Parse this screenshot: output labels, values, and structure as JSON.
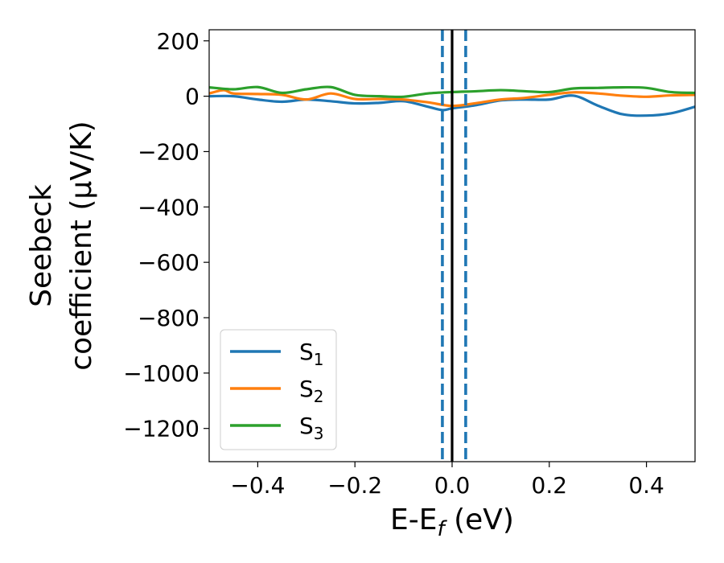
{
  "chart_data": {
    "type": "line",
    "xlabel": "E-E",
    "xlabel_sub": "f",
    "xlabel_unit": " (eV)",
    "ylabel_line1": "Seebeck",
    "ylabel_line2": "coefficient  (μV/K)",
    "xlim": [
      -0.5,
      0.5
    ],
    "ylim": [
      -1320,
      240
    ],
    "x_ticks": [
      -0.4,
      -0.2,
      0.0,
      0.2,
      0.4
    ],
    "x_tick_labels": [
      "−0.4",
      "−0.2",
      "0.0",
      "0.2",
      "0.4"
    ],
    "y_ticks": [
      200,
      0,
      -200,
      -400,
      -600,
      -800,
      -1000,
      -1200
    ],
    "y_tick_labels": [
      "200",
      "0",
      "−200",
      "−400",
      "−600",
      "−800",
      "−1000",
      "−1200"
    ],
    "grid": false,
    "legend_position": "lower-left",
    "vlines": [
      {
        "x": 0.0,
        "color": "#000000",
        "style": "solid"
      },
      {
        "x": -0.02,
        "color": "#1f77b4",
        "style": "dashed"
      },
      {
        "x": 0.028,
        "color": "#1f77b4",
        "style": "dashed"
      }
    ],
    "series": [
      {
        "name": "S",
        "name_sub": "1",
        "color": "#1f77b4",
        "x": [
          -0.5,
          -0.45,
          -0.4,
          -0.35,
          -0.3,
          -0.25,
          -0.2,
          -0.15,
          -0.1,
          -0.05,
          -0.02,
          0.0,
          0.05,
          0.1,
          0.15,
          0.2,
          0.25,
          0.3,
          0.35,
          0.4,
          0.45,
          0.5
        ],
        "values": [
          0,
          0,
          -12,
          -20,
          -12,
          -18,
          -26,
          -24,
          -18,
          -38,
          -50,
          -44,
          -32,
          -15,
          -12,
          -12,
          2,
          -34,
          -65,
          -70,
          -62,
          -38
        ]
      },
      {
        "name": "S",
        "name_sub": "2",
        "color": "#ff7f0e",
        "x": [
          -0.5,
          -0.47,
          -0.45,
          -0.4,
          -0.35,
          -0.3,
          -0.25,
          -0.2,
          -0.15,
          -0.1,
          -0.05,
          0.0,
          0.05,
          0.1,
          0.15,
          0.2,
          0.25,
          0.3,
          0.35,
          0.4,
          0.45,
          0.5
        ],
        "values": [
          10,
          22,
          10,
          8,
          5,
          -12,
          10,
          -10,
          -10,
          -12,
          -22,
          -35,
          -25,
          -12,
          -6,
          5,
          14,
          10,
          2,
          -2,
          3,
          5
        ]
      },
      {
        "name": "S",
        "name_sub": "3",
        "color": "#2ca02c",
        "x": [
          -0.5,
          -0.45,
          -0.4,
          -0.35,
          -0.3,
          -0.25,
          -0.2,
          -0.15,
          -0.1,
          -0.05,
          0.0,
          0.05,
          0.1,
          0.15,
          0.2,
          0.25,
          0.3,
          0.35,
          0.4,
          0.45,
          0.5
        ],
        "values": [
          32,
          25,
          33,
          12,
          25,
          33,
          5,
          0,
          -2,
          10,
          15,
          18,
          22,
          18,
          15,
          28,
          30,
          32,
          30,
          15,
          12
        ]
      }
    ]
  }
}
